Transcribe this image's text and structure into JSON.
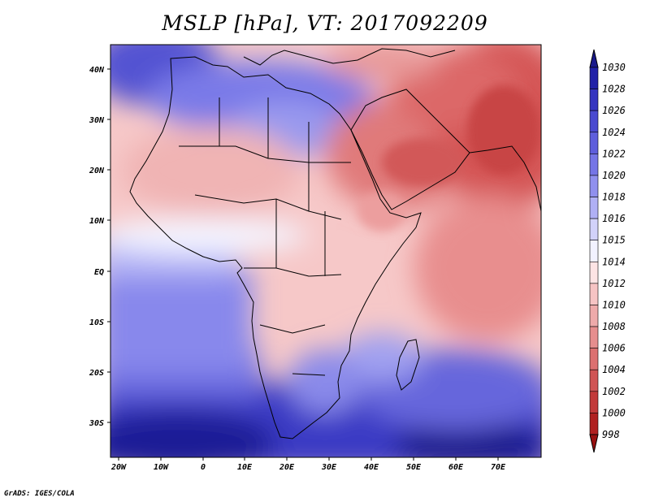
{
  "title": "MSLP [hPa], VT: 2017092209",
  "footer": "GrADS: IGES/COLA",
  "lat_labels": [
    "40N",
    "30N",
    "20N",
    "10N",
    "EQ",
    "10S",
    "20S",
    "30S"
  ],
  "lon_labels": [
    "20W",
    "10W",
    "0",
    "10E",
    "20E",
    "30E",
    "40E",
    "50E",
    "60E",
    "70E"
  ],
  "colorbar": {
    "levels": [
      "1030",
      "1028",
      "1026",
      "1024",
      "1022",
      "1020",
      "1018",
      "1016",
      "1015",
      "1014",
      "1012",
      "1010",
      "1008",
      "1006",
      "1004",
      "1002",
      "1000",
      "998"
    ],
    "colors": [
      "#1a1a8c",
      "#2121a8",
      "#3535c0",
      "#4a4ad0",
      "#5e5edc",
      "#7575e6",
      "#9090ee",
      "#b0b0f5",
      "#d2d2fa",
      "#f2f2ff",
      "#fde4e4",
      "#f6c4c4",
      "#eeaaaa",
      "#e68e8e",
      "#dc7070",
      "#d05454",
      "#c23a3a",
      "#b02020",
      "#981010"
    ]
  },
  "map": {
    "extent": {
      "lon_min": -22,
      "lon_max": 80,
      "lat_min": -37,
      "lat_max": 45
    },
    "fields": [
      {
        "name": "south-atlantic-high",
        "lon": -10,
        "lat": -30,
        "rx": 30,
        "ry": 14,
        "level": 0
      },
      {
        "name": "indian-ocean-high",
        "lon": 68,
        "lat": -33,
        "rx": 20,
        "ry": 8,
        "level": 0
      },
      {
        "name": "azores-ridge",
        "lon": -15,
        "lat": 38,
        "rx": 14,
        "ry": 9,
        "level": 3
      },
      {
        "name": "mediterranean-high",
        "lon": 15,
        "lat": 38,
        "rx": 16,
        "ry": 8,
        "level": 5
      },
      {
        "name": "asian-monsoon-low",
        "lon": 62,
        "lat": 28,
        "rx": 22,
        "ry": 18,
        "level": 15
      },
      {
        "name": "arabian-low",
        "lon": 48,
        "lat": 22,
        "rx": 14,
        "ry": 10,
        "level": 13
      },
      {
        "name": "somali-trough",
        "lon": 62,
        "lat": 0,
        "rx": 20,
        "ry": 18,
        "level": 11
      }
    ]
  }
}
